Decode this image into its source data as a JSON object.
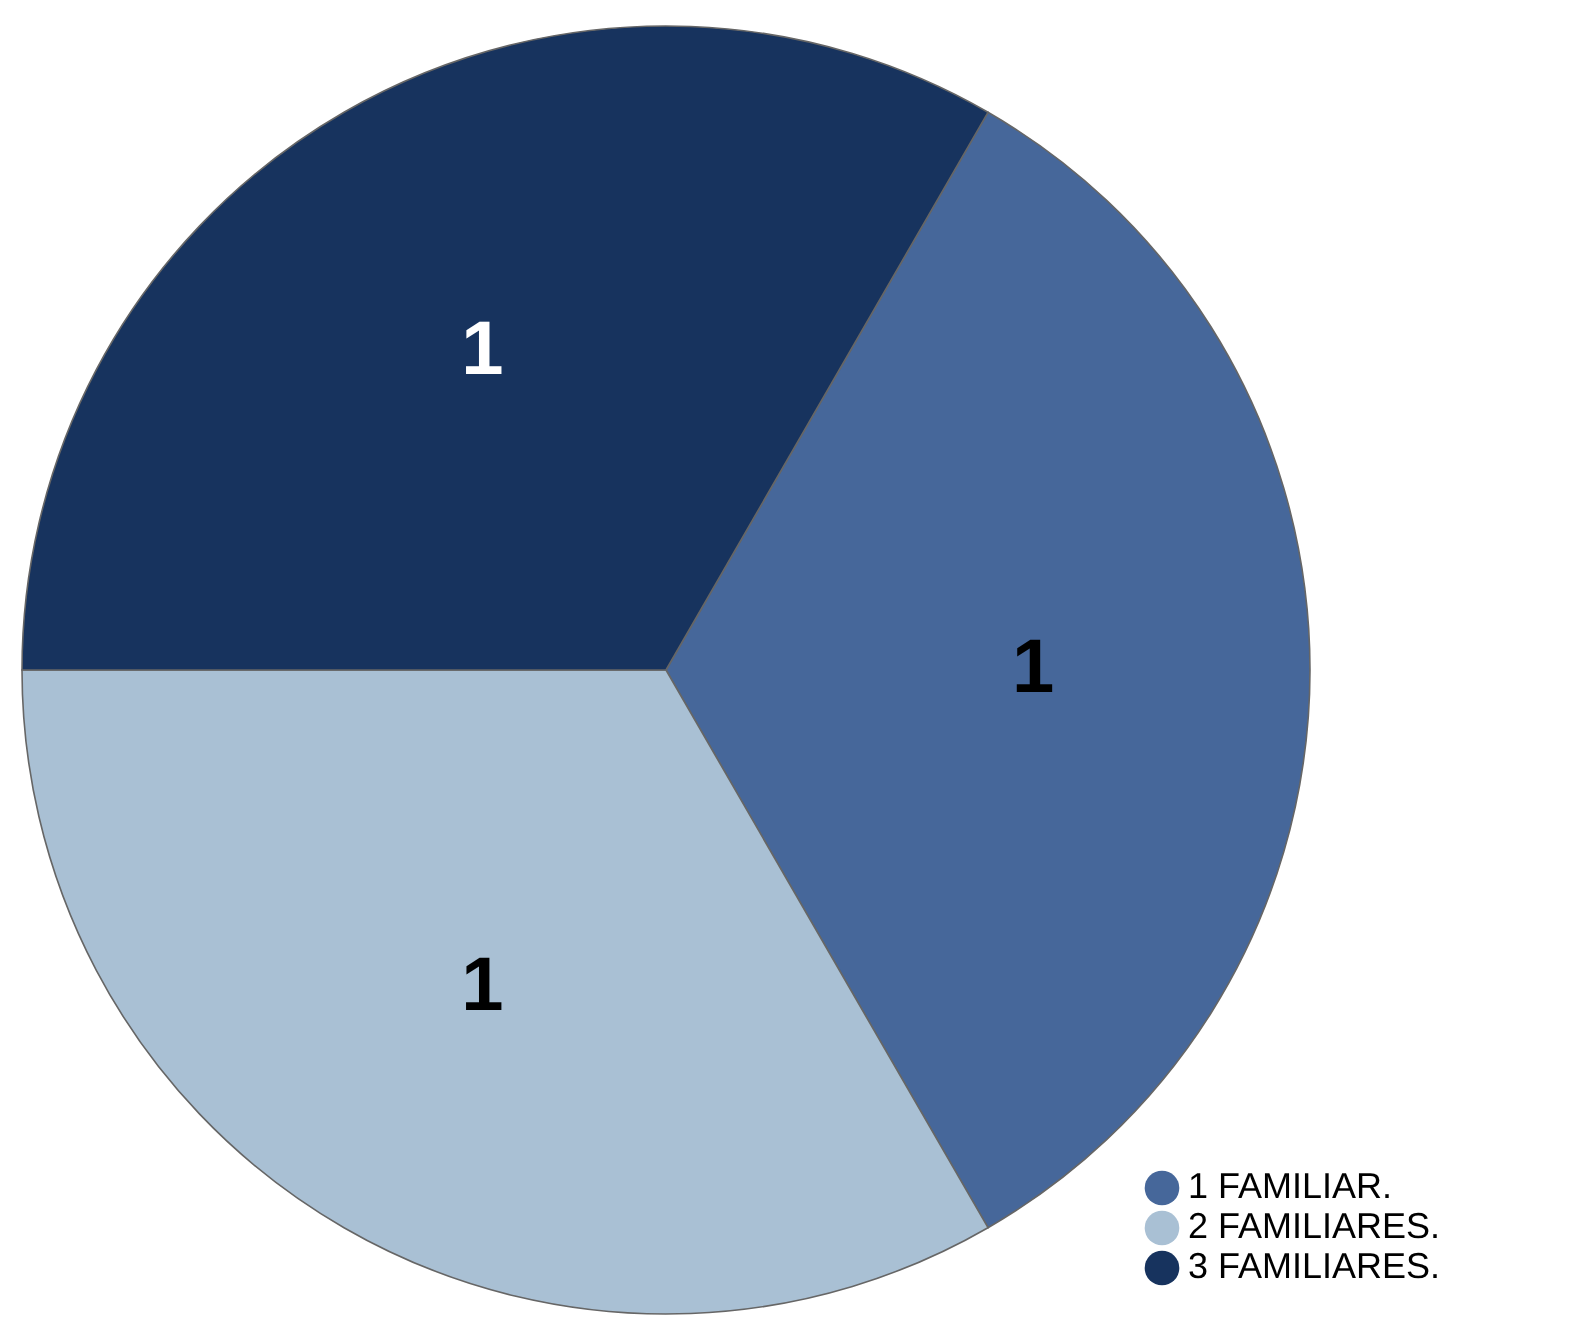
{
  "chart_data": {
    "type": "pie",
    "categories": [
      "1 FAMILIAR.",
      "2 FAMILIARES.",
      "3 FAMILIARES."
    ],
    "values": [
      1,
      1,
      1
    ],
    "colors": [
      "#46679a",
      "#a9c0d4",
      "#17335e"
    ],
    "data_labels": true,
    "legend": "bottom right"
  }
}
